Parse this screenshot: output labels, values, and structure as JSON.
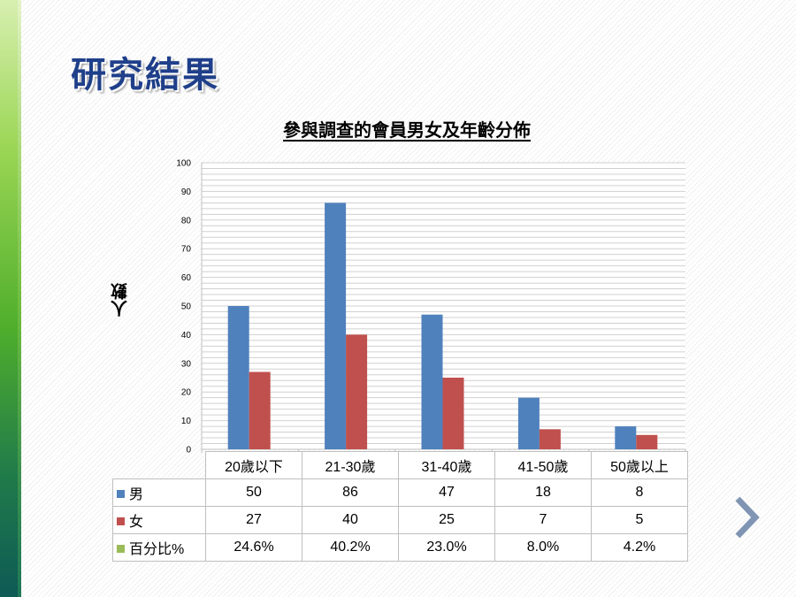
{
  "slide": {
    "title": "研究結果"
  },
  "chart_data": {
    "type": "bar",
    "title": "參與調查的會員男女及年齡分佈",
    "ylabel": "人數",
    "xlabel": "",
    "ylim": [
      0,
      100
    ],
    "yticks": [
      0,
      10,
      20,
      30,
      40,
      50,
      60,
      70,
      80,
      90,
      100
    ],
    "grid": true,
    "categories": [
      "20歲以下",
      "21-30歲",
      "31-40歲",
      "41-50歲",
      "50歲以上"
    ],
    "series": [
      {
        "name": "男",
        "color": "#4f81bd",
        "values": [
          50,
          86,
          47,
          18,
          8
        ]
      },
      {
        "name": "女",
        "color": "#c0504d",
        "values": [
          27,
          40,
          25,
          7,
          5
        ]
      }
    ],
    "table_extra": {
      "name": "百分比%",
      "color": "#9bbb59",
      "values": [
        "24.6%",
        "40.2%",
        "23.0%",
        "8.0%",
        "4.2%"
      ]
    }
  },
  "nav": {
    "next_icon": "chevron-right-icon"
  }
}
